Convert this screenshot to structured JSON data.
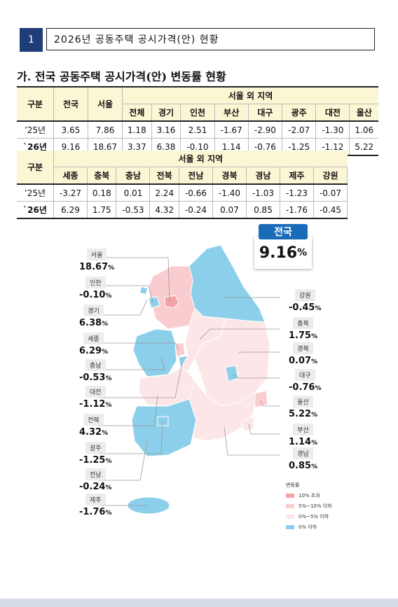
{
  "section": {
    "number": "1",
    "title": "2026년 공동주택 공시가격(안) 현황"
  },
  "subheading": "가. 전국 공동주택 공시가격(안) 변동률 현황",
  "table1": {
    "h_gubun": "구분",
    "h_national": "전국",
    "h_seoul": "서울",
    "h_group": "서울 외 지역",
    "columns": [
      "전체",
      "경기",
      "인천",
      "부산",
      "대구",
      "광주",
      "대전",
      "울산"
    ],
    "rows": [
      {
        "label": "’25년",
        "national": "3.65",
        "seoul": "7.86",
        "values": [
          "1.18",
          "3.16",
          "2.51",
          "-1.67",
          "-2.90",
          "-2.07",
          "-1.30",
          "1.06"
        ]
      },
      {
        "label": "`26년",
        "national": "9.16",
        "seoul": "18.67",
        "values": [
          "3.37",
          "6.38",
          "-0.10",
          "1.14",
          "-0.76",
          "-1.25",
          "-1.12",
          "5.22"
        ]
      }
    ]
  },
  "table2": {
    "h_gubun": "구분",
    "h_group": "서울 외 지역",
    "columns": [
      "세종",
      "충북",
      "충남",
      "전북",
      "전남",
      "경북",
      "경남",
      "제주",
      "강원"
    ],
    "rows": [
      {
        "label": "’25년",
        "values": [
          "-3.27",
          "0.18",
          "0.01",
          "2.24",
          "-0.66",
          "-1.40",
          "-1.03",
          "-1.23",
          "-0.07"
        ]
      },
      {
        "label": "`26년",
        "values": [
          "6.29",
          "1.75",
          "-0.53",
          "4.32",
          "-0.24",
          "0.07",
          "0.85",
          "-1.76",
          "-0.45"
        ]
      }
    ]
  },
  "national_box": {
    "label": "전국",
    "value": "9.16",
    "unit": "%"
  },
  "map_callouts": [
    {
      "id": "seoul",
      "name": "서울",
      "value": "18.67"
    },
    {
      "id": "incheon",
      "name": "인천",
      "value": "-0.10"
    },
    {
      "id": "gyeonggi",
      "name": "경기",
      "value": "6.38"
    },
    {
      "id": "sejong",
      "name": "세종",
      "value": "6.29"
    },
    {
      "id": "chungnam",
      "name": "충남",
      "value": "-0.53"
    },
    {
      "id": "daejeon",
      "name": "대전",
      "value": "-1.12"
    },
    {
      "id": "jeonbuk",
      "name": "전북",
      "value": "4.32"
    },
    {
      "id": "gwangju",
      "name": "광주",
      "value": "-1.25"
    },
    {
      "id": "jeonnam",
      "name": "전남",
      "value": "-0.24"
    },
    {
      "id": "jeju",
      "name": "제주",
      "value": "-1.76"
    },
    {
      "id": "gangwon",
      "name": "강원",
      "value": "-0.45"
    },
    {
      "id": "chungbuk",
      "name": "충북",
      "value": "1.75"
    },
    {
      "id": "gyeongbuk",
      "name": "경북",
      "value": "0.07"
    },
    {
      "id": "daegu",
      "name": "대구",
      "value": "-0.76"
    },
    {
      "id": "ulsan",
      "name": "울산",
      "value": "5.22"
    },
    {
      "id": "busan",
      "name": "부산",
      "value": "1.14"
    },
    {
      "id": "gyeongnam",
      "name": "경남",
      "value": "0.85"
    }
  ],
  "percent_unit": "%",
  "legend": {
    "title": "변동률",
    "items": [
      {
        "label": "10% 초과",
        "color": "#f4a3a8"
      },
      {
        "label": "5%~10% 이하",
        "color": "#f9ccd0"
      },
      {
        "label": "0%~5% 이하",
        "color": "#fde6e8"
      },
      {
        "label": "0% 이하",
        "color": "#8ccfea"
      }
    ]
  },
  "colors": {
    "high": "#f4a3a8",
    "mid": "#f9ccd0",
    "low": "#fde6e8",
    "neg": "#8ccfea",
    "header_bg": "#fbf7d5",
    "accent": "#1f3e78"
  }
}
